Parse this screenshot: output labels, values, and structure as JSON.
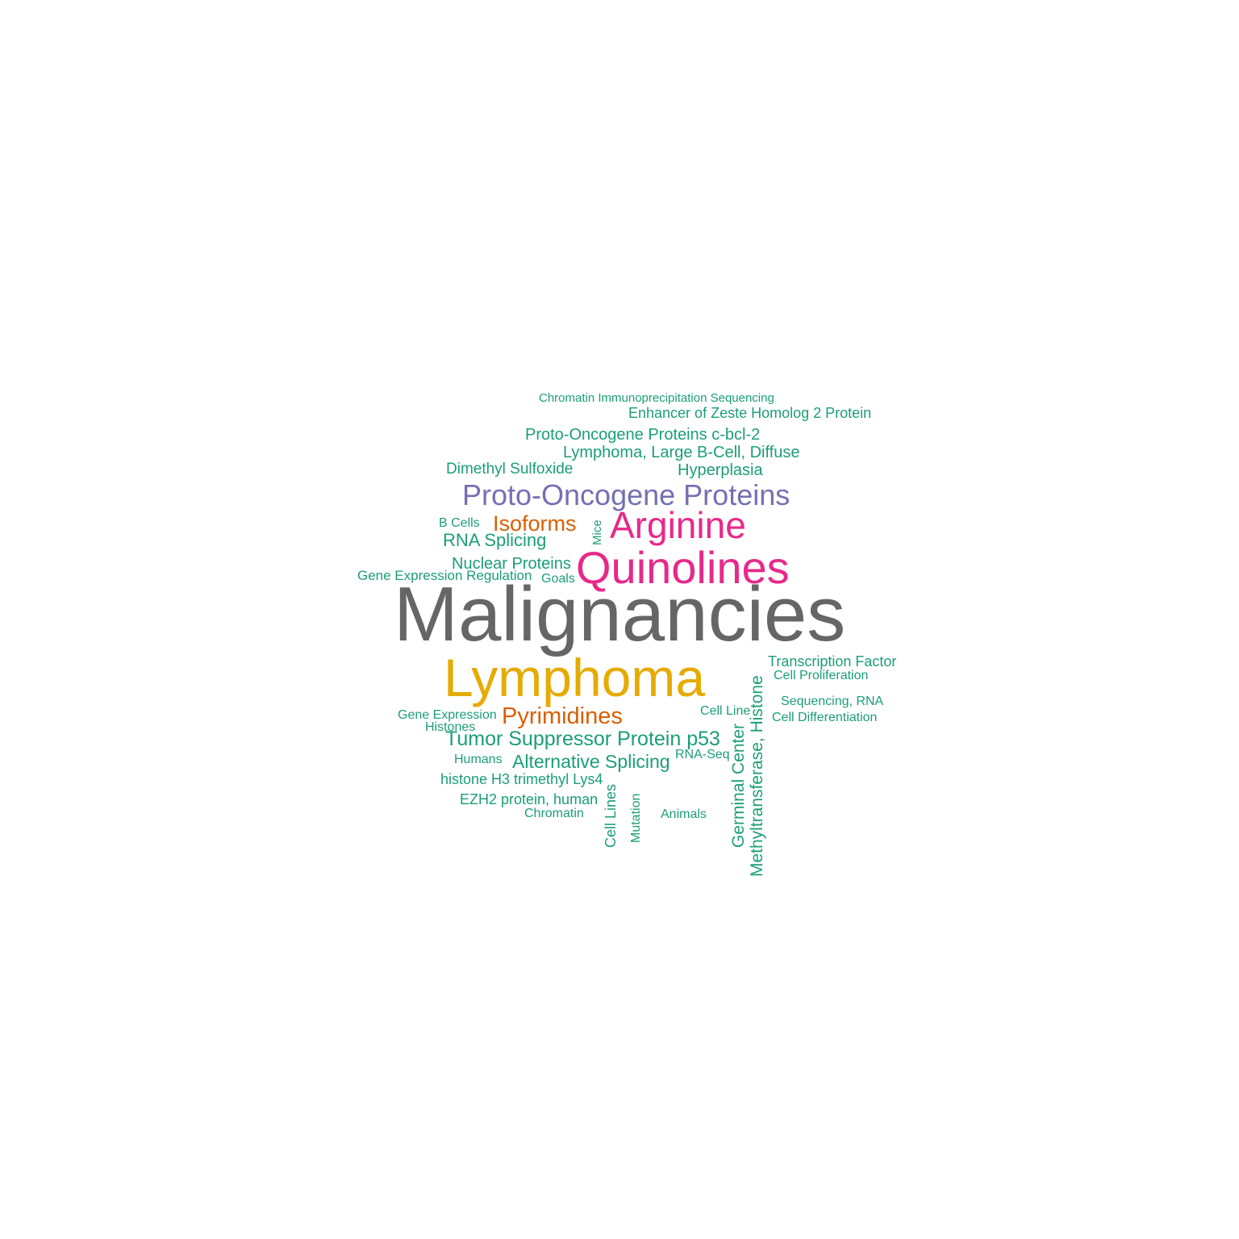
{
  "colors": {
    "gray": "#666666",
    "gold": "#e6ab02",
    "magenta": "#e7298a",
    "purple": "#7570b3",
    "orange": "#d95f02",
    "green": "#1b9e77"
  },
  "words": {
    "w01": {
      "text": "Malignancies",
      "color": "#666666"
    },
    "w02": {
      "text": "Lymphoma",
      "color": "#e6ab02"
    },
    "w03": {
      "text": "Quinolines",
      "color": "#e7298a"
    },
    "w04": {
      "text": "Arginine",
      "color": "#e7298a"
    },
    "w05": {
      "text": "Proto-Oncogene Proteins",
      "color": "#7570b3"
    },
    "w06": {
      "text": "Isoforms",
      "color": "#d95f02"
    },
    "w07": {
      "text": "Pyrimidines",
      "color": "#d95f02"
    },
    "w08": {
      "text": "Chromatin Immunoprecipitation Sequencing",
      "color": "#1b9e77"
    },
    "w09": {
      "text": "Enhancer of Zeste Homolog 2 Protein",
      "color": "#1b9e77"
    },
    "w10": {
      "text": "Proto-Oncogene Proteins c-bcl-2",
      "color": "#1b9e77"
    },
    "w11": {
      "text": "Lymphoma, Large B-Cell, Diffuse",
      "color": "#1b9e77"
    },
    "w12": {
      "text": "Dimethyl Sulfoxide",
      "color": "#1b9e77"
    },
    "w13": {
      "text": "Hyperplasia",
      "color": "#1b9e77"
    },
    "w14": {
      "text": "B Cells",
      "color": "#1b9e77"
    },
    "w15": {
      "text": "Mice",
      "color": "#1b9e77"
    },
    "w16": {
      "text": "RNA Splicing",
      "color": "#1b9e77"
    },
    "w17": {
      "text": "Nuclear Proteins",
      "color": "#1b9e77"
    },
    "w18": {
      "text": "Gene Expression Regulation",
      "color": "#1b9e77"
    },
    "w19": {
      "text": "Goals",
      "color": "#1b9e77"
    },
    "w20": {
      "text": "Transcription Factor",
      "color": "#1b9e77"
    },
    "w21": {
      "text": "Cell Proliferation",
      "color": "#1b9e77"
    },
    "w22": {
      "text": "Sequencing, RNA",
      "color": "#1b9e77"
    },
    "w23": {
      "text": "Cell Differentiation",
      "color": "#1b9e77"
    },
    "w24": {
      "text": "Cell Line",
      "color": "#1b9e77"
    },
    "w25": {
      "text": "Methyltransferase, Histone",
      "color": "#1b9e77"
    },
    "w26": {
      "text": "Germinal Center",
      "color": "#1b9e77"
    },
    "w27": {
      "text": "Gene Expression",
      "color": "#1b9e77"
    },
    "w28": {
      "text": "Histones",
      "color": "#1b9e77"
    },
    "w29": {
      "text": "Tumor Suppressor Protein p53",
      "color": "#1b9e77"
    },
    "w30": {
      "text": "Humans",
      "color": "#1b9e77"
    },
    "w31": {
      "text": "Alternative Splicing",
      "color": "#1b9e77"
    },
    "w32": {
      "text": "RNA-Seq",
      "color": "#1b9e77"
    },
    "w33": {
      "text": "histone H3 trimethyl Lys4",
      "color": "#1b9e77"
    },
    "w34": {
      "text": "EZH2 protein, human",
      "color": "#1b9e77"
    },
    "w35": {
      "text": "Chromatin",
      "color": "#1b9e77"
    },
    "w36": {
      "text": "Cell Lines",
      "color": "#1b9e77"
    },
    "w37": {
      "text": "Mutation",
      "color": "#1b9e77"
    },
    "w38": {
      "text": "Animals",
      "color": "#1b9e77"
    }
  }
}
